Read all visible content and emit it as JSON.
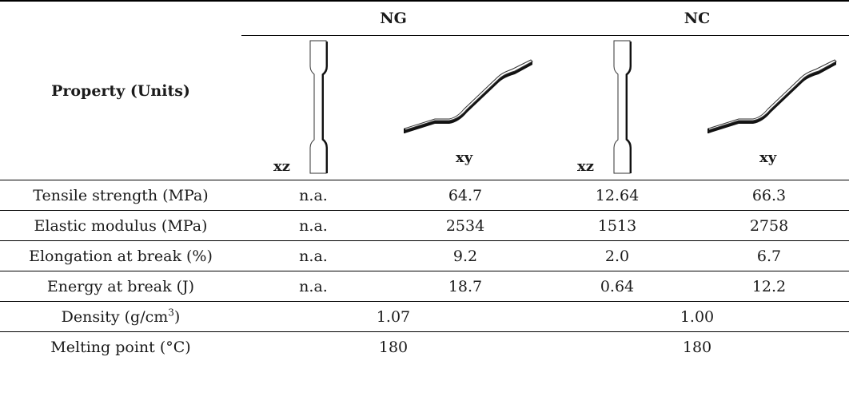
{
  "header": {
    "property_label": "Property (Units)",
    "group_ng": "NG",
    "group_nc": "NC",
    "orientation_xz": "xz",
    "orientation_xy": "xy"
  },
  "rows": [
    {
      "property": "Tensile strength (MPa)",
      "ng_xz": "n.a.",
      "ng_xy": "64.7",
      "nc_xz": "12.64",
      "nc_xy": "66.3"
    },
    {
      "property": "Elastic modulus (MPa)",
      "ng_xz": "n.a.",
      "ng_xy": "2534",
      "nc_xz": "1513",
      "nc_xy": "2758"
    },
    {
      "property": "Elongation at break (%)",
      "ng_xz": "n.a.",
      "ng_xy": "9.2",
      "nc_xz": "2.0",
      "nc_xy": "6.7"
    },
    {
      "property": "Energy at break (J)",
      "ng_xz": "n.a.",
      "ng_xy": "18.7",
      "nc_xz": "0.64",
      "nc_xy": "12.2"
    }
  ],
  "density": {
    "label_prefix": "Density (g/cm",
    "label_sup": "3",
    "label_suffix": ")",
    "ng": "1.07",
    "nc": "1.00"
  },
  "melting": {
    "label": "Melting point (°C)",
    "ng": "180",
    "nc": "180"
  }
}
